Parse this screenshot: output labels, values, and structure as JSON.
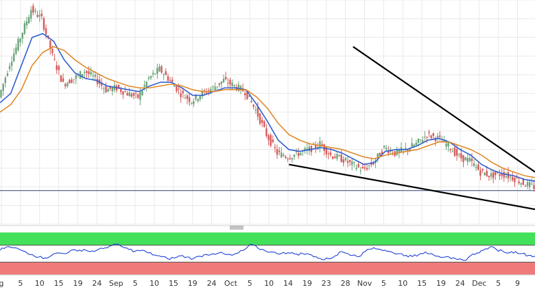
{
  "chart_data": [
    {
      "type": "line",
      "subtype": "candlestick-with-moving-averages",
      "title": "",
      "xlabel": "",
      "ylabel": "",
      "grid": true,
      "legend": "none",
      "x_tick_labels": [
        "g",
        "5",
        "10",
        "15",
        "19",
        "24",
        "Sep",
        "5",
        "10",
        "15",
        "19",
        "24",
        "Oct",
        "5",
        "10",
        "14",
        "19",
        "23",
        "28",
        "Nov",
        "5",
        "10",
        "15",
        "19",
        "24",
        "Dec",
        "5",
        "9"
      ],
      "price_series": [
        {
          "name": "",
          "color": "#6aa37a",
          "values": [
            108,
            126,
            140,
            155,
            150,
            130,
            115,
            118,
            122,
            118,
            112,
            113,
            110,
            108,
            118,
            123,
            117,
            110,
            106,
            110,
            113,
            117,
            114,
            111,
            101,
            88,
            78,
            76,
            78,
            80,
            83,
            77,
            75,
            72,
            69,
            73,
            81,
            78,
            80,
            83,
            88,
            86,
            82,
            76,
            74,
            68,
            66,
            67,
            65,
            62,
            60
          ]
        },
        {
          "name": "",
          "color": "#d45a5a",
          "values": []
        }
      ],
      "moving_averages": [
        {
          "name": "",
          "color": "#2e5fd0",
          "values": [
            105,
            110,
            125,
            140,
            142,
            138,
            128,
            121,
            118,
            117,
            114,
            113,
            112,
            111,
            114,
            116,
            116,
            113,
            109,
            109,
            111,
            113,
            113,
            112,
            104,
            95,
            85,
            80,
            79,
            80,
            81,
            80,
            78,
            75,
            72,
            73,
            79,
            80,
            80,
            82,
            85,
            86,
            84,
            80,
            77,
            72,
            69,
            67,
            66,
            64,
            63
          ]
        },
        {
          "name": "",
          "color": "#e08a2a",
          "values": [
            100,
            104,
            112,
            125,
            132,
            135,
            133,
            128,
            124,
            121,
            118,
            116,
            114,
            113,
            113,
            114,
            115,
            114,
            112,
            111,
            111,
            112,
            112,
            112,
            108,
            102,
            94,
            88,
            85,
            83,
            82,
            81,
            80,
            78,
            76,
            75,
            77,
            78,
            79,
            80,
            82,
            84,
            84,
            82,
            80,
            77,
            73,
            70,
            68,
            66,
            65
          ]
        }
      ],
      "trendlines": [
        {
          "name": "",
          "color": "#000000",
          "from": [
            33,
            135
          ],
          "to": [
            50,
            68
          ]
        },
        {
          "name": "",
          "color": "#000000",
          "from": [
            27,
            72
          ],
          "to": [
            50,
            48
          ]
        }
      ],
      "horizontal_line": {
        "name": "",
        "color": "#2c3f6b",
        "value": 58
      },
      "ylim": [
        40,
        160
      ]
    },
    {
      "type": "line",
      "subtype": "oscillator",
      "title": "",
      "xlabel": "",
      "ylabel": "",
      "grid": false,
      "legend": "none",
      "upper_zone_color": "#43e05a",
      "lower_zone_color": "#f07a7a",
      "upper_threshold": 70,
      "lower_threshold": 30,
      "series": [
        {
          "name": "",
          "color": "#1c3fd8",
          "values": [
            58,
            66,
            64,
            60,
            54,
            48,
            42,
            40,
            46,
            52,
            50,
            58,
            56,
            60,
            55,
            58,
            62,
            68,
            72,
            66,
            60,
            56,
            58,
            52,
            47,
            43,
            38,
            40,
            45,
            42,
            38,
            44,
            48,
            50,
            52,
            48,
            46,
            52,
            60,
            72,
            63,
            58,
            54,
            50,
            53,
            51,
            49,
            50,
            48,
            43,
            36,
            38,
            45,
            55,
            50,
            47,
            45,
            60,
            64,
            60,
            56,
            52,
            50,
            46,
            43,
            48,
            54,
            50,
            44,
            42,
            38,
            36,
            34,
            45,
            52,
            58,
            66,
            60,
            56,
            52,
            55,
            50,
            46,
            44
          ]
        }
      ],
      "ylim": [
        0,
        100
      ]
    }
  ]
}
